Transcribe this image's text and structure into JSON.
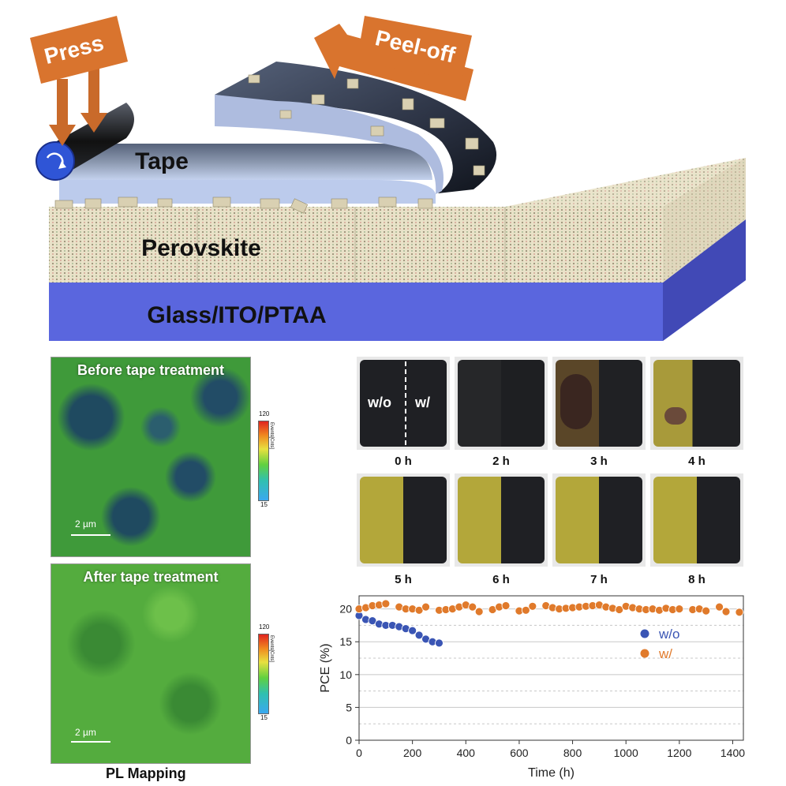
{
  "schematic": {
    "press_label": "Press",
    "peel_label": "Peel-off",
    "tape_label": "Tape",
    "perovskite_label": "Perovskite",
    "substrate_label": "Glass/ITO/PTAA"
  },
  "pl_mapping": {
    "before_title": "Before tape treatment",
    "after_title": "After tape treatment",
    "scale_text": "2 µm",
    "colorbar_max": "120",
    "colorbar_min": "15",
    "colorbar_unit": "Events[Cnts]",
    "caption": "PL Mapping"
  },
  "photos": {
    "wo_label": "w/o",
    "w_label": "w/",
    "times": [
      "0 h",
      "2 h",
      "3 h",
      "4 h",
      "5 h",
      "6 h",
      "7 h",
      "8 h"
    ]
  },
  "chart_data": {
    "type": "scatter",
    "xlabel": "Time (h)",
    "ylabel": "PCE (%)",
    "xlim": [
      0,
      1440
    ],
    "ylim": [
      0,
      22
    ],
    "xticks": [
      0,
      200,
      400,
      600,
      800,
      1000,
      1200,
      1400
    ],
    "yticks": [
      0,
      5,
      10,
      15,
      20
    ],
    "grid": true,
    "legend_position": "right",
    "series": [
      {
        "name": "w/o",
        "color": "#3a55b4",
        "x": [
          0,
          25,
          50,
          75,
          100,
          125,
          150,
          175,
          200,
          225,
          250,
          275,
          300
        ],
        "y": [
          19.0,
          18.4,
          18.2,
          17.7,
          17.5,
          17.5,
          17.3,
          17.0,
          16.7,
          16.0,
          15.4,
          15.0,
          14.8
        ]
      },
      {
        "name": "w/",
        "color": "#e07a2b",
        "x": [
          0,
          25,
          50,
          75,
          100,
          150,
          175,
          200,
          225,
          250,
          300,
          325,
          350,
          375,
          400,
          425,
          450,
          500,
          525,
          550,
          600,
          625,
          650,
          700,
          725,
          750,
          775,
          800,
          825,
          850,
          875,
          900,
          925,
          950,
          975,
          1000,
          1025,
          1050,
          1075,
          1100,
          1125,
          1150,
          1175,
          1200,
          1250,
          1275,
          1300,
          1350,
          1375,
          1425
        ],
        "y": [
          20.0,
          20.2,
          20.5,
          20.6,
          20.8,
          20.3,
          20.0,
          20.0,
          19.8,
          20.3,
          19.8,
          19.9,
          20.0,
          20.3,
          20.6,
          20.3,
          19.6,
          19.9,
          20.3,
          20.5,
          19.7,
          19.8,
          20.4,
          20.5,
          20.2,
          20.0,
          20.1,
          20.2,
          20.3,
          20.4,
          20.5,
          20.6,
          20.3,
          20.1,
          19.9,
          20.4,
          20.2,
          20.0,
          19.9,
          20.0,
          19.8,
          20.1,
          19.9,
          20.0,
          19.9,
          20.0,
          19.7,
          20.3,
          19.6,
          19.5
        ]
      }
    ]
  }
}
